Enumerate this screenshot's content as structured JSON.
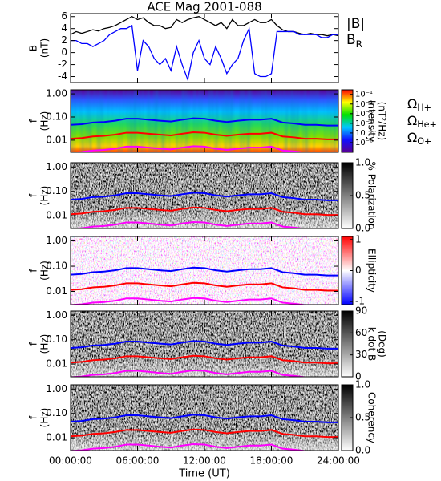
{
  "title": "ACE Mag 2001-088",
  "x_axis": {
    "label": "Time (UT)",
    "xlim": [
      0,
      24
    ],
    "xticks": [
      {
        "value": 0,
        "label": "00:00:00"
      },
      {
        "value": 6,
        "label": "06:00:00"
      },
      {
        "value": 12,
        "label": "12:00:00"
      },
      {
        "value": 18,
        "label": "18:00:00"
      },
      {
        "value": 24,
        "label": "24:00:00"
      }
    ]
  },
  "gyrofrequencies": {
    "x": [
      0,
      1,
      2,
      3,
      4,
      5,
      6,
      7,
      8,
      9,
      10,
      11,
      12,
      13,
      14,
      15,
      16,
      17,
      18,
      19,
      20,
      21,
      22,
      23,
      24
    ],
    "series": [
      {
        "name": "ΩH+",
        "color": "#0000ff",
        "values": [
          0.046,
          0.049,
          0.058,
          0.061,
          0.069,
          0.084,
          0.084,
          0.076,
          0.069,
          0.064,
          0.076,
          0.088,
          0.084,
          0.069,
          0.061,
          0.069,
          0.076,
          0.076,
          0.084,
          0.058,
          0.053,
          0.046,
          0.046,
          0.043,
          0.043
        ]
      },
      {
        "name": "ΩHe+",
        "color": "#ff0000",
        "values": [
          0.0115,
          0.0123,
          0.0145,
          0.0153,
          0.0173,
          0.021,
          0.021,
          0.019,
          0.0173,
          0.016,
          0.019,
          0.022,
          0.021,
          0.0173,
          0.0153,
          0.0173,
          0.019,
          0.019,
          0.021,
          0.0145,
          0.0133,
          0.0115,
          0.0115,
          0.0108,
          0.0108
        ]
      },
      {
        "name": "ΩO+",
        "color": "#ff00ff",
        "values": [
          0.0029,
          0.0031,
          0.0036,
          0.0038,
          0.0043,
          0.0053,
          0.0053,
          0.0048,
          0.0043,
          0.004,
          0.0048,
          0.0055,
          0.0053,
          0.0043,
          0.0038,
          0.0043,
          0.0048,
          0.0048,
          0.0053,
          0.0036,
          0.0033,
          0.0029,
          0.0029,
          0.0027,
          0.0027
        ]
      }
    ]
  },
  "chart_data": [
    {
      "type": "line",
      "ylabel": [
        "B",
        "(nT)"
      ],
      "ylim": [
        -5,
        6.5
      ],
      "yticks": [
        -4,
        -2,
        0,
        2,
        4,
        6
      ],
      "x": [
        0,
        0.5,
        1,
        1.5,
        2,
        2.5,
        3,
        3.5,
        4,
        4.5,
        5,
        5.5,
        6,
        6.5,
        7,
        7.5,
        8,
        8.5,
        9,
        9.5,
        10,
        10.5,
        11,
        11.5,
        12,
        12.5,
        13,
        13.5,
        14,
        14.5,
        15,
        15.5,
        16,
        16.5,
        17,
        17.5,
        18,
        18.5,
        19,
        19.5,
        20,
        20.5,
        21,
        21.5,
        22,
        22.5,
        23,
        23.5,
        24
      ],
      "series": [
        {
          "name": "|B|",
          "color": "#000000",
          "values": [
            3,
            3.5,
            3.2,
            3.5,
            3.8,
            3.6,
            4,
            4.2,
            4.5,
            5,
            5.5,
            6,
            5.5,
            5.8,
            5,
            4.5,
            4.5,
            4,
            4.2,
            5.5,
            5,
            5.5,
            5.8,
            6,
            5.5,
            5,
            4.5,
            5,
            4,
            5.5,
            4.5,
            4.5,
            5,
            5.5,
            5,
            5,
            5.5,
            4.5,
            3.8,
            3.5,
            3.5,
            3.2,
            3,
            3.2,
            3,
            3,
            2.8,
            3,
            2.8
          ]
        },
        {
          "name": "BR",
          "color": "#0000ff",
          "values": [
            2,
            2,
            1.5,
            1.5,
            1,
            1.5,
            2,
            3,
            3.5,
            4,
            4,
            4.5,
            -3,
            2,
            1,
            -1,
            -2,
            -1,
            -3,
            1,
            -2,
            -4.5,
            0,
            2,
            -1,
            -2,
            1,
            -1,
            -3.5,
            -2,
            -1,
            2,
            4,
            -3.5,
            -4,
            -4,
            -3.5,
            3.5,
            3.5,
            3.5,
            3.5,
            3,
            3,
            3,
            3,
            2.5,
            2.5,
            3,
            3
          ]
        }
      ]
    },
    {
      "type": "spectrogram",
      "ylabel": [
        "f",
        "(Hz)"
      ],
      "ylog": true,
      "ylim": [
        0.003,
        1.5
      ],
      "yticks": [
        0.01,
        {
          "value": 0.1,
          "label": "0.10"
        },
        {
          "value": 1,
          "label": "1.00"
        }
      ],
      "gyro_legend": true,
      "colorbar": {
        "label": [
          "Intensity",
          "(nT²/Hz)"
        ],
        "log": true,
        "colormap": "rainbow",
        "clim": [
          1e-07,
          0.3
        ],
        "ticks": [
          {
            "value": 0.1,
            "label": "10⁻¹"
          },
          {
            "value": 0.01,
            "label": "10⁻²"
          },
          {
            "value": 0.001,
            "label": "10⁻³"
          },
          {
            "value": 0.0001,
            "label": "10⁻⁴"
          },
          {
            "value": 1e-05,
            "label": "10⁻⁵"
          },
          {
            "value": 1e-06,
            "label": "10⁻⁶"
          }
        ]
      }
    },
    {
      "type": "spectrogram",
      "ylabel": [
        "f",
        "(Hz)"
      ],
      "ylog": true,
      "ylim": [
        0.003,
        1.5
      ],
      "yticks": [
        0.01,
        {
          "value": 0.1,
          "label": "0.10"
        },
        {
          "value": 1,
          "label": "1.00"
        }
      ],
      "colorbar": {
        "label": [
          "% Polarization"
        ],
        "colormap": "gray",
        "clim": [
          0,
          1
        ],
        "ticks": [
          {
            "value": 0,
            "label": "0.0"
          },
          0.5,
          {
            "value": 1,
            "label": "1.0"
          }
        ]
      }
    },
    {
      "type": "spectrogram",
      "ylabel": [
        "f",
        "(Hz)"
      ],
      "ylog": true,
      "ylim": [
        0.003,
        1.5
      ],
      "yticks": [
        0.01,
        {
          "value": 0.1,
          "label": "0.10"
        },
        {
          "value": 1,
          "label": "1.00"
        }
      ],
      "colorbar": {
        "label": [
          "Ellipticity"
        ],
        "colormap": "bwr",
        "clim": [
          -1.1,
          1.1
        ],
        "ticks": [
          -1,
          0,
          1
        ]
      }
    },
    {
      "type": "spectrogram",
      "ylabel": [
        "f",
        "(Hz)"
      ],
      "ylog": true,
      "ylim": [
        0.003,
        1.5
      ],
      "yticks": [
        0.01,
        {
          "value": 0.1,
          "label": "0.10"
        },
        {
          "value": 1,
          "label": "1.00"
        }
      ],
      "colorbar": {
        "label": [
          "k dot B",
          "(Deg)"
        ],
        "colormap": "gray",
        "clim": [
          0,
          90
        ],
        "ticks": [
          0,
          30,
          60,
          90
        ]
      }
    },
    {
      "type": "spectrogram",
      "ylabel": [
        "f",
        "(Hz)"
      ],
      "ylog": true,
      "ylim": [
        0.003,
        1.5
      ],
      "yticks": [
        0.01,
        {
          "value": 0.1,
          "label": "0.10"
        },
        {
          "value": 1,
          "label": "1.00"
        }
      ],
      "colorbar": {
        "label": [
          "Coherency"
        ],
        "colormap": "gray",
        "clim": [
          0,
          1
        ],
        "ticks": [
          {
            "value": 0,
            "label": "0.0"
          },
          0.5,
          {
            "value": 1,
            "label": "1.0"
          }
        ]
      }
    }
  ]
}
